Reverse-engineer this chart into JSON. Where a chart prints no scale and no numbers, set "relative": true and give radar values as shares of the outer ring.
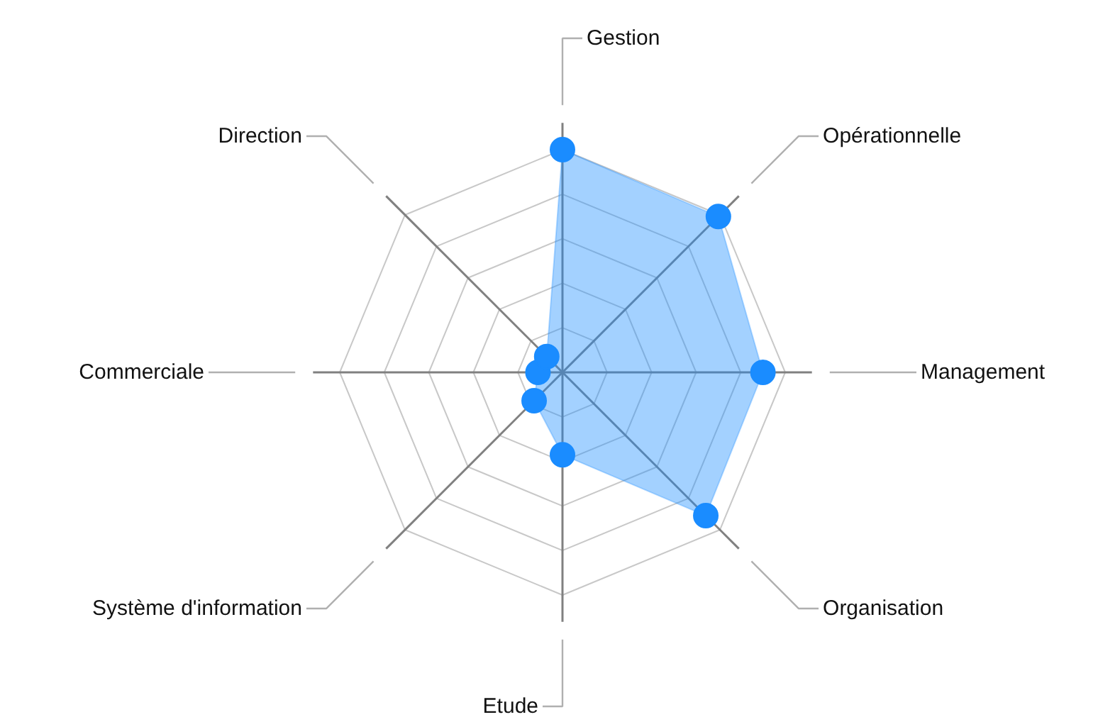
{
  "chart_data": {
    "type": "radar",
    "relative": true,
    "categories": [
      "Gestion",
      "Opérationnelle",
      "Management",
      "Organisation",
      "Etude",
      "Système d'information",
      "Commerciale",
      "Direction"
    ],
    "series": [
      {
        "color": "#1a8cff",
        "values": [
          1.0,
          0.99,
          0.9,
          0.91,
          0.37,
          0.18,
          0.11,
          0.1
        ]
      }
    ],
    "marker": "circle",
    "grid": true
  }
}
